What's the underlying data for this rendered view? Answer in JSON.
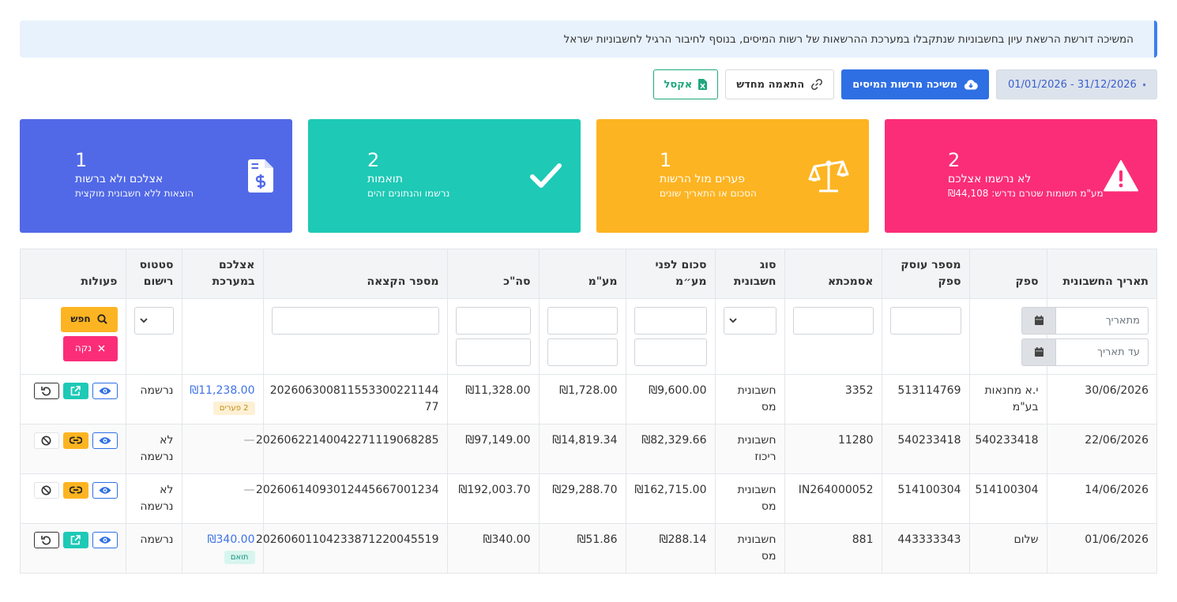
{
  "banner": {
    "text": "המשיכה דורשת הרשאת עיון בחשבוניות שנתקבלו במערכת ההרשאות של רשות המיסים, בנוסף לחיבור הרגיל לחשבוניות ישראל"
  },
  "toolbar": {
    "date_range": "01/01/2026 - 31/12/2026",
    "pull_label": "משיכה מרשות המיסים",
    "rematch_label": "התאמה מחדש",
    "excel_label": "אקסל"
  },
  "cards": {
    "not_recorded": {
      "count": "2",
      "label": "לא נרשמו אצלכם",
      "sub": "מע\"מ תשומות שטרם נדרש: ₪44,108",
      "color": "#fb2d78",
      "icon": "warning-icon"
    },
    "gaps": {
      "count": "1",
      "label": "פערים מול הרשות",
      "sub": "הסכום או התאריך שונים",
      "color": "#fdb422",
      "icon": "scale-icon"
    },
    "matches": {
      "count": "2",
      "label": "תואמות",
      "sub": "נרשמו והנתונים זהים",
      "color": "#1ec9b6",
      "icon": "check-icon"
    },
    "ours_only": {
      "count": "1",
      "label": "אצלכם ולא ברשות",
      "sub": "הוצאות ללא חשבונית מוקצית",
      "color": "#5169e7",
      "icon": "invoice-dollar-icon"
    }
  },
  "table": {
    "headers": {
      "date": "תאריך החשבונית",
      "supplier": "ספק",
      "supplier_id": "מספר עוסק ספק",
      "reference": "אסמכתא",
      "invoice_type": "סוג חשבונית",
      "amount_before_vat": "סכום לפני מע״מ",
      "vat": "מע\"מ",
      "total": "סה\"כ",
      "allocation": "מספר הקצאה",
      "in_system": "אצלכם במערכת",
      "status": "סטטוס רישום",
      "actions": "פעולות"
    },
    "filters": {
      "date_from": "מתאריך",
      "date_to": "עד תאריך",
      "search_label": "חפש",
      "clear_label": "נקה"
    },
    "rows": [
      {
        "date": "30/06/2026",
        "supplier": "י.א מחנאות בע\"מ",
        "supplier_id": "513114769",
        "reference": "3352",
        "invoice_type": "חשבונית מס",
        "amount_before_vat": "₪9,600.00",
        "vat": "₪1,728.00",
        "total": "₪11,328.00",
        "allocation": "202606300811553300221144 77",
        "in_system": "₪11,238.00",
        "badge": "2 פערים",
        "status": "נרשמה"
      },
      {
        "date": "22/06/2026",
        "supplier": "540233418",
        "supplier_id": "540233418",
        "reference": "11280",
        "invoice_type": "חשבונית ריכוז",
        "amount_before_vat": "₪82,329.66",
        "vat": "₪14,819.34",
        "total": "₪97,149.00",
        "allocation": "20260622140042271119068285",
        "in_system": "—",
        "badge": "",
        "status": "לא נרשמה"
      },
      {
        "date": "14/06/2026",
        "supplier": "514100304",
        "supplier_id": "514100304",
        "reference": "IN264000052",
        "invoice_type": "חשבונית מס",
        "amount_before_vat": "₪162,715.00",
        "vat": "₪29,288.70",
        "total": "₪192,003.70",
        "allocation": "20260614093012445667001234",
        "in_system": "—",
        "badge": "",
        "status": "לא נרשמה"
      },
      {
        "date": "01/06/2026",
        "supplier": "שלום",
        "supplier_id": "443333343",
        "reference": "881",
        "invoice_type": "חשבונית מס",
        "amount_before_vat": "₪288.14",
        "vat": "₪51.86",
        "total": "₪340.00",
        "allocation": "20260601104233871220045519",
        "in_system": "₪340.00",
        "badge": "תואם",
        "status": "נרשמה"
      }
    ]
  }
}
